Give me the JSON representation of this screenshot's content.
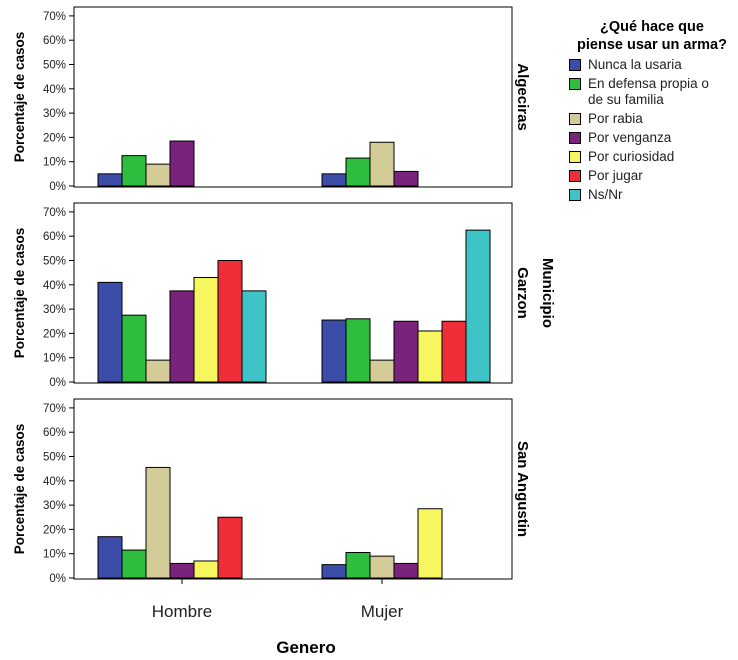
{
  "chart_data": {
    "type": "bar",
    "xlabel": "Genero",
    "ylabel": "Porcentaje de casos",
    "panel_group_label": "Municipio",
    "categories": [
      "Hombre",
      "Mujer"
    ],
    "y_ticks": [
      "0%",
      "10%",
      "20%",
      "30%",
      "40%",
      "50%",
      "60%",
      "70%"
    ],
    "ylim": [
      0,
      70
    ],
    "legend_title_lines": [
      "¿Qué hace que",
      "piense usar un arma?"
    ],
    "legend_position": "right",
    "series": [
      {
        "name": "Nunca la usaria",
        "color": "#3b4da8"
      },
      {
        "name": "En defensa propia o de su familia",
        "color": "#2ebd3d"
      },
      {
        "name": "Por rabia",
        "color": "#d4cc98"
      },
      {
        "name": "Por venganza",
        "color": "#7a237c"
      },
      {
        "name": "Por curiosidad",
        "color": "#f6f65e"
      },
      {
        "name": "Por jugar",
        "color": "#ee2f3a"
      },
      {
        "name": "Ns/Nr",
        "color": "#3ec3c7"
      }
    ],
    "panels": [
      {
        "label": "Algeciras",
        "groups": [
          {
            "category": "Hombre",
            "values": [
              5,
              12.5,
              9,
              18.5,
              null,
              null,
              null
            ]
          },
          {
            "category": "Mujer",
            "values": [
              5,
              11.5,
              18,
              6,
              null,
              null,
              null
            ]
          }
        ]
      },
      {
        "label": "Garzon",
        "groups": [
          {
            "category": "Hombre",
            "values": [
              41,
              27.5,
              9,
              37.5,
              43,
              50,
              37.5
            ]
          },
          {
            "category": "Mujer",
            "values": [
              25.5,
              26,
              9,
              25,
              21,
              25,
              62.5
            ]
          }
        ]
      },
      {
        "label": "San Angustin",
        "groups": [
          {
            "category": "Hombre",
            "values": [
              17,
              11.5,
              45.5,
              6,
              7,
              25,
              null
            ]
          },
          {
            "category": "Mujer",
            "values": [
              5.5,
              10.5,
              9,
              6,
              28.5,
              null,
              null
            ]
          }
        ]
      }
    ]
  }
}
